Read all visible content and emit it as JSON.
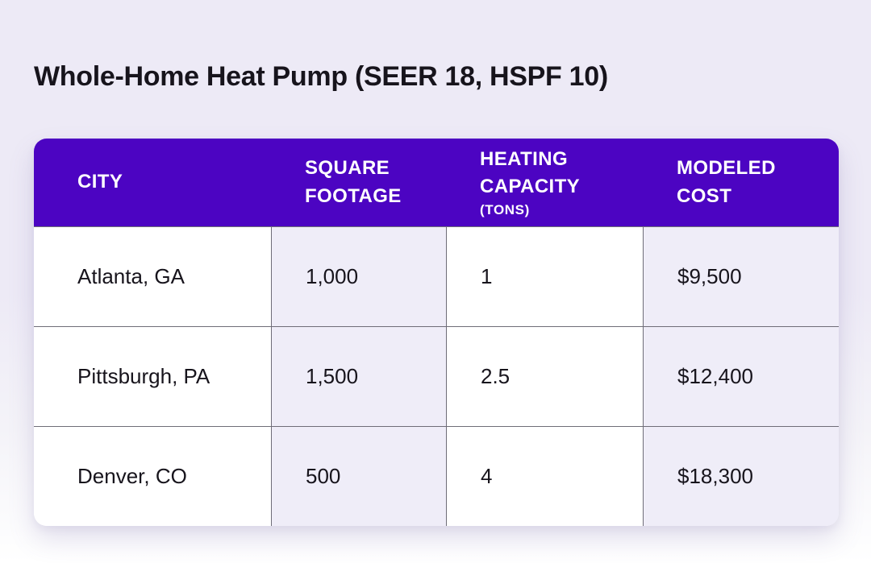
{
  "page": {
    "title": "Whole-Home Heat Pump (SEER 18, HSPF 10)"
  },
  "table": {
    "headers": [
      {
        "label": "CITY",
        "sub": ""
      },
      {
        "label": "SQUARE FOOTAGE",
        "sub": ""
      },
      {
        "label": "HEATING CAPACITY",
        "sub": "(TONS)"
      },
      {
        "label": "MODELED COST",
        "sub": ""
      }
    ],
    "rows": [
      {
        "city": "Atlanta, GA",
        "square_footage": "1,000",
        "heating_capacity_tons": "1",
        "modeled_cost": "$9,500"
      },
      {
        "city": "Pittsburgh, PA",
        "square_footage": "1,500",
        "heating_capacity_tons": "2.5",
        "modeled_cost": "$12,400"
      },
      {
        "city": "Denver, CO",
        "square_footage": "500",
        "heating_capacity_tons": "4",
        "modeled_cost": "$18,300"
      }
    ]
  },
  "colors": {
    "header_background": "#4C04C2",
    "header_text": "#FFFFFF",
    "alt_column_background": "#EFEDF8",
    "grid_line": "#6F6D78",
    "body_text": "#17141C",
    "page_background_top": "#EDEAF6",
    "page_background_bottom": "#FFFFFF"
  },
  "chart_data": {
    "type": "table",
    "title": "Whole-Home Heat Pump (SEER 18, HSPF 10)",
    "columns": [
      "CITY",
      "SQUARE FOOTAGE",
      "HEATING CAPACITY (TONS)",
      "MODELED COST"
    ],
    "rows": [
      [
        "Atlanta, GA",
        "1,000",
        "1",
        "$9,500"
      ],
      [
        "Pittsburgh, PA",
        "1,500",
        "2.5",
        "$12,400"
      ],
      [
        "Denver, CO",
        "500",
        "4",
        "$18,300"
      ]
    ]
  }
}
